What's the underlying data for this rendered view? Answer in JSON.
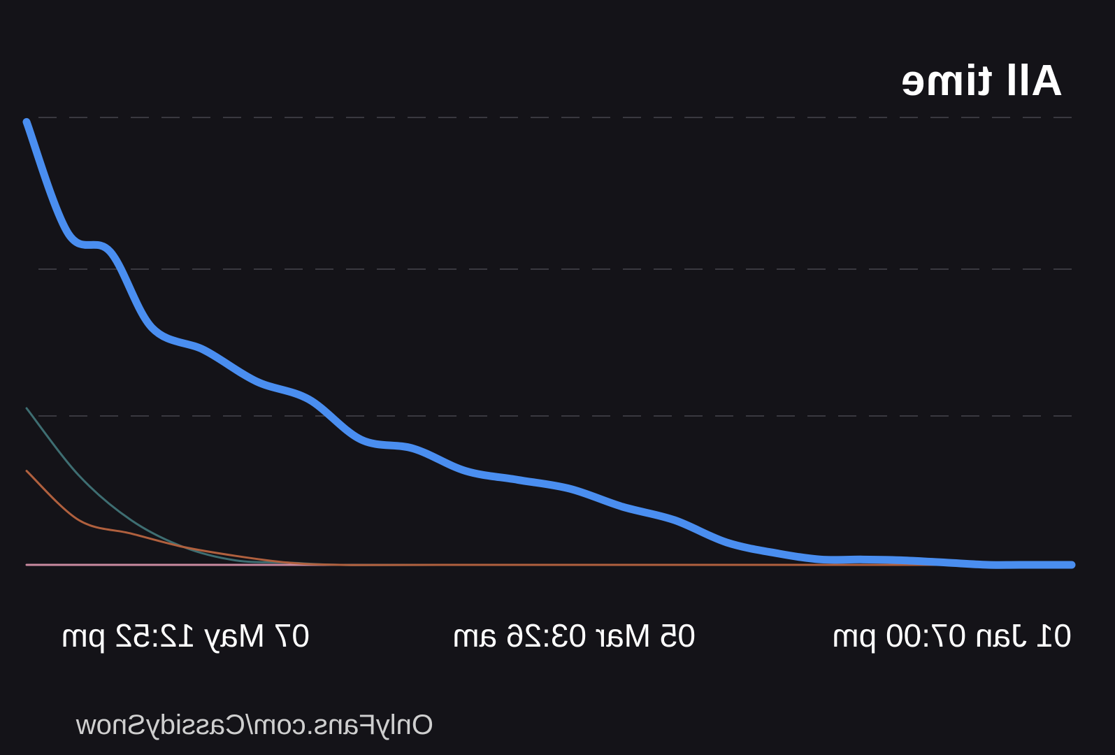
{
  "header": {
    "range_label": "All time"
  },
  "watermark": {
    "text": "OnlyFans.com/CassidySnow"
  },
  "colors": {
    "background": "#141318",
    "grid": "#3a3940",
    "series_blue": "#4a8ef0",
    "series_teal": "#3e6e72",
    "series_orange": "#b0603e",
    "series_pink": "#c98aa0"
  },
  "layout": {
    "mirrored_horizontally": true
  },
  "chart_data": {
    "type": "line",
    "title": "All time",
    "x_ticks": [
      "01 Jan 07:00 pm",
      "05 Mar 03:26 am",
      "07 May 12:52 pm"
    ],
    "xlim": [
      0,
      100
    ],
    "ylim": [
      0,
      100
    ],
    "grid": true,
    "legend": "none",
    "series": [
      {
        "color": "#4a8ef0",
        "x": [
          0,
          5,
          8,
          12,
          16,
          20,
          24,
          28,
          33,
          38,
          43,
          48,
          53,
          58,
          63,
          68,
          73,
          78,
          83,
          88,
          92,
          96,
          100
        ],
        "y": [
          0,
          0,
          0,
          0.5,
          1,
          1.2,
          1.2,
          2.5,
          5,
          10,
          13,
          17,
          19,
          21,
          26,
          28,
          37,
          41,
          48,
          53,
          70,
          74,
          99
        ]
      },
      {
        "color": "#3e6e72",
        "x": [
          0,
          60,
          70,
          75,
          80,
          85,
          90,
          95,
          100
        ],
        "y": [
          0,
          0,
          0,
          0.5,
          1,
          4,
          10,
          20,
          35
        ]
      },
      {
        "color": "#b0603e",
        "x": [
          0,
          60,
          70,
          75,
          80,
          85,
          90,
          95,
          100
        ],
        "y": [
          0,
          0,
          0,
          0.5,
          2,
          4,
          7,
          10,
          21
        ]
      },
      {
        "color": "#c98aa0",
        "x": [
          0,
          100
        ],
        "y": [
          0,
          0
        ]
      }
    ]
  }
}
